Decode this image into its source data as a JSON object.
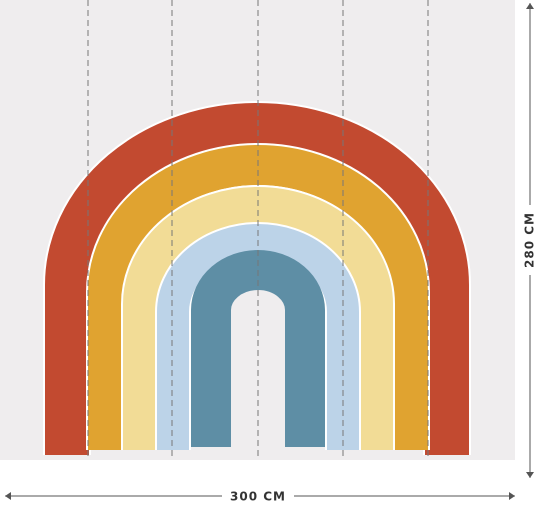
{
  "width_label": "300 CM",
  "height_label": "280 CM"
}
